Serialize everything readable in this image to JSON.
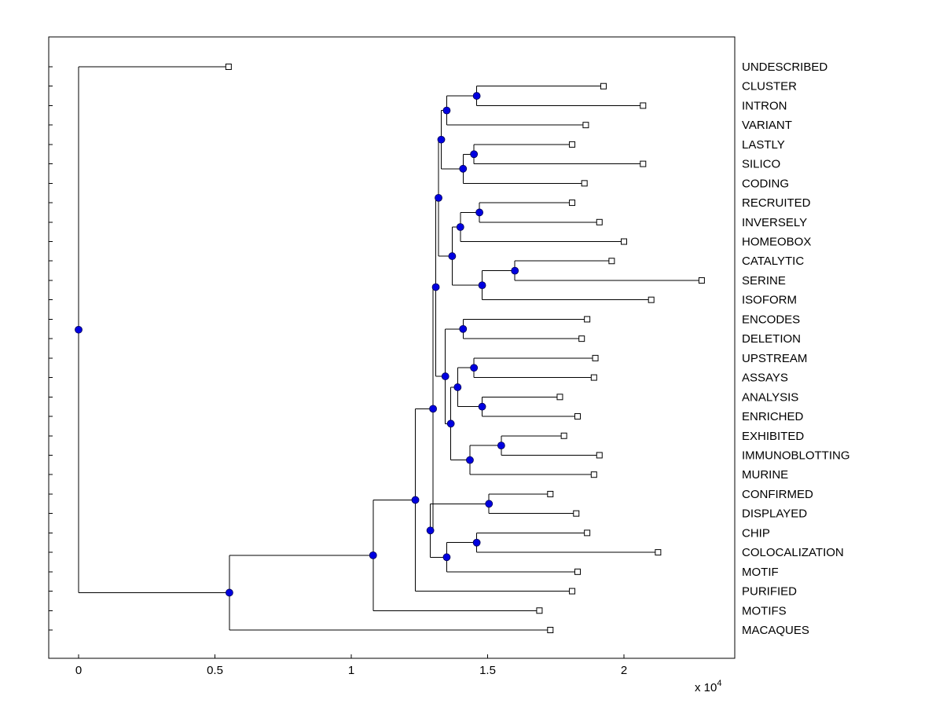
{
  "figure": {
    "title": "",
    "background_color": "#ffffff"
  },
  "chart_data": {
    "type": "dendrogram",
    "title": "",
    "xlabel": "",
    "ylabel": "",
    "legend": null,
    "grid": false,
    "n_leaves": 30,
    "x_axis": {
      "values": [
        0,
        0.5,
        1,
        1.5,
        2
      ],
      "tick_labels": [
        "0",
        "0.5",
        "1",
        "1.5",
        "2"
      ],
      "multiplier_base": "x 10",
      "multiplier_exponent": "4",
      "xlim": [
        -0.11,
        2.41
      ],
      "units_note": "branch length scale, values x 10^4"
    },
    "colors": {
      "line": "#000000",
      "text": "#000000",
      "node_fill": "#0000e0",
      "node_edge": "#000050",
      "tip_fill": "#ffffff",
      "tip_edge": "#000000",
      "background": "#ffffff"
    },
    "leaves": [
      {
        "label": "UNDESCRIBED",
        "tip": 0.55
      },
      {
        "label": "CLUSTER",
        "tip": 1.925
      },
      {
        "label": "INTRON",
        "tip": 2.07
      },
      {
        "label": "VARIANT",
        "tip": 1.86
      },
      {
        "label": "LASTLY",
        "tip": 1.81
      },
      {
        "label": "SILICO",
        "tip": 2.07
      },
      {
        "label": "CODING",
        "tip": 1.855
      },
      {
        "label": "RECRUITED",
        "tip": 1.81
      },
      {
        "label": "INVERSELY",
        "tip": 1.91
      },
      {
        "label": "HOMEOBOX",
        "tip": 2.0
      },
      {
        "label": "CATALYTIC",
        "tip": 1.955
      },
      {
        "label": "SERINE",
        "tip": 2.285
      },
      {
        "label": "ISOFORM",
        "tip": 2.1
      },
      {
        "label": "ENCODES",
        "tip": 1.865
      },
      {
        "label": "DELETION",
        "tip": 1.845
      },
      {
        "label": "UPSTREAM",
        "tip": 1.895
      },
      {
        "label": "ASSAYS",
        "tip": 1.89
      },
      {
        "label": "ANALYSIS",
        "tip": 1.765
      },
      {
        "label": "ENRICHED",
        "tip": 1.83
      },
      {
        "label": "EXHIBITED",
        "tip": 1.78
      },
      {
        "label": "IMMUNOBLOTTING",
        "tip": 1.91
      },
      {
        "label": "MURINE",
        "tip": 1.89
      },
      {
        "label": "CONFIRMED",
        "tip": 1.73
      },
      {
        "label": "DISPLAYED",
        "tip": 1.825
      },
      {
        "label": "CHIP",
        "tip": 1.865
      },
      {
        "label": "COLOCALIZATION",
        "tip": 2.125
      },
      {
        "label": "MOTIF",
        "tip": 1.83
      },
      {
        "label": "PURIFIED",
        "tip": 1.81
      },
      {
        "label": "MOTIFS",
        "tip": 1.69
      },
      {
        "label": "MACAQUES",
        "tip": 1.73
      }
    ],
    "tree": {
      "x": 0,
      "children": [
        {
          "leaf": 0
        },
        {
          "x": 0.553,
          "children": [
            {
              "x": 1.08,
              "children": [
                {
                  "x": 1.235,
                  "children": [
                    {
                      "x": 1.3,
                      "children": [
                        {
                          "x": 1.31,
                          "children": [
                            {
                              "x": 1.32,
                              "children": [
                                {
                                  "x": 1.33,
                                  "children": [
                                    {
                                      "x": 1.35,
                                      "children": [
                                        {
                                          "x": 1.46,
                                          "children": [
                                            {
                                              "leaf": 1
                                            },
                                            {
                                              "leaf": 2
                                            }
                                          ]
                                        },
                                        {
                                          "leaf": 3
                                        }
                                      ]
                                    },
                                    {
                                      "x": 1.41,
                                      "children": [
                                        {
                                          "x": 1.45,
                                          "children": [
                                            {
                                              "leaf": 4
                                            },
                                            {
                                              "leaf": 5
                                            }
                                          ]
                                        },
                                        {
                                          "leaf": 6
                                        }
                                      ]
                                    }
                                  ]
                                },
                                {
                                  "x": 1.37,
                                  "children": [
                                    {
                                      "x": 1.4,
                                      "children": [
                                        {
                                          "x": 1.47,
                                          "children": [
                                            {
                                              "leaf": 7
                                            },
                                            {
                                              "leaf": 8
                                            }
                                          ]
                                        },
                                        {
                                          "leaf": 9
                                        }
                                      ]
                                    },
                                    {
                                      "x": 1.48,
                                      "children": [
                                        {
                                          "x": 1.6,
                                          "children": [
                                            {
                                              "leaf": 10
                                            },
                                            {
                                              "leaf": 11
                                            }
                                          ]
                                        },
                                        {
                                          "leaf": 12
                                        }
                                      ]
                                    }
                                  ]
                                }
                              ]
                            },
                            {
                              "x": 1.345,
                              "children": [
                                {
                                  "x": 1.41,
                                  "children": [
                                    {
                                      "leaf": 13
                                    },
                                    {
                                      "leaf": 14
                                    }
                                  ]
                                },
                                {
                                  "x": 1.365,
                                  "children": [
                                    {
                                      "x": 1.39,
                                      "children": [
                                        {
                                          "x": 1.45,
                                          "children": [
                                            {
                                              "leaf": 15
                                            },
                                            {
                                              "leaf": 16
                                            }
                                          ]
                                        },
                                        {
                                          "x": 1.48,
                                          "children": [
                                            {
                                              "leaf": 17
                                            },
                                            {
                                              "leaf": 18
                                            }
                                          ]
                                        }
                                      ]
                                    },
                                    {
                                      "x": 1.435,
                                      "children": [
                                        {
                                          "x": 1.55,
                                          "children": [
                                            {
                                              "leaf": 19
                                            },
                                            {
                                              "leaf": 20
                                            }
                                          ]
                                        },
                                        {
                                          "leaf": 21
                                        }
                                      ]
                                    }
                                  ]
                                }
                              ]
                            }
                          ]
                        },
                        {
                          "x": 1.29,
                          "children": [
                            {
                              "x": 1.505,
                              "children": [
                                {
                                  "leaf": 22
                                },
                                {
                                  "leaf": 23
                                }
                              ]
                            },
                            {
                              "x": 1.35,
                              "children": [
                                {
                                  "x": 1.46,
                                  "children": [
                                    {
                                      "leaf": 24
                                    },
                                    {
                                      "leaf": 25
                                    }
                                  ]
                                },
                                {
                                  "leaf": 26
                                }
                              ]
                            }
                          ]
                        }
                      ]
                    },
                    {
                      "leaf": 27
                    }
                  ]
                },
                {
                  "leaf": 28
                }
              ]
            },
            {
              "leaf": 29
            }
          ]
        }
      ]
    }
  }
}
